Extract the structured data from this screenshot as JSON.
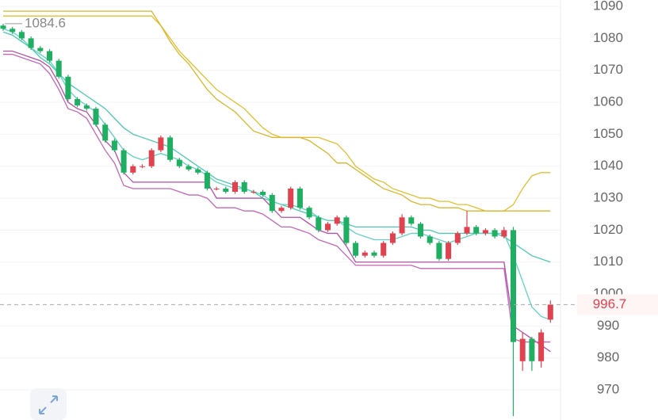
{
  "chart_data": {
    "type": "candlestick",
    "ylim": [
      960.6,
      1092
    ],
    "yticks": [
      970,
      980,
      990,
      1000,
      1010,
      1020,
      1030,
      1040,
      1050,
      1060,
      1070,
      1080,
      1090
    ],
    "grid": true,
    "up_color": "#e0424f",
    "down_color": "#1fae62",
    "open": [
      1084,
      1083,
      1082,
      1080,
      1077,
      1076,
      1073,
      1068,
      1061,
      1059,
      1058,
      1053,
      1048,
      1045,
      1038,
      1040,
      1040,
      1045,
      1049,
      1042,
      1040,
      1039,
      1038,
      1033,
      1033,
      1032,
      1035,
      1032,
      1032,
      1031,
      1026,
      1027,
      1033,
      1027,
      1024,
      1020,
      1022,
      1024,
      1016,
      1012,
      1013,
      1012,
      1016,
      1019,
      1024,
      1022,
      1018,
      1016,
      1011,
      1016,
      1019,
      1021,
      1019,
      1020,
      1018,
      1020,
      979,
      986,
      979,
      992
    ],
    "high": [
      1084.6,
      1083.6,
      1082.6,
      1080.6,
      1077.6,
      1076.6,
      1073.6,
      1068.6,
      1061.6,
      1059.6,
      1058.6,
      1053.6,
      1048.6,
      1045.6,
      1040.6,
      1040.6,
      1045.6,
      1049.6,
      1049.6,
      1042.6,
      1040.6,
      1039.6,
      1038.6,
      1033.6,
      1033.6,
      1035.6,
      1035.6,
      1032.6,
      1032.6,
      1031.6,
      1027.6,
      1033.6,
      1033.6,
      1027.6,
      1024.6,
      1022.6,
      1024.6,
      1024.6,
      1016.6,
      1013.6,
      1013.6,
      1016.6,
      1019.6,
      1025,
      1024.6,
      1022.6,
      1018.6,
      1016.6,
      1016.6,
      1019.6,
      1026,
      1021.6,
      1020.6,
      1020.6,
      1021,
      1021,
      988,
      986.6,
      989,
      998
    ],
    "low": [
      1082.4,
      1081.4,
      1079.4,
      1076.4,
      1075.4,
      1072.4,
      1067.4,
      1060.4,
      1058.4,
      1057.4,
      1052.4,
      1047.4,
      1044.4,
      1037.4,
      1037.4,
      1039.4,
      1039.4,
      1044.4,
      1041.4,
      1039.4,
      1038.4,
      1037.4,
      1032.4,
      1032.4,
      1031.4,
      1031.4,
      1031.4,
      1031.4,
      1030.4,
      1025.4,
      1025.4,
      1026.4,
      1026.4,
      1023.4,
      1019.4,
      1019.4,
      1021.4,
      1015.4,
      1011.4,
      1011.4,
      1011.4,
      1011.4,
      1015.4,
      1018.4,
      1021.4,
      1017.4,
      1015.4,
      1010.4,
      1010.4,
      1015.4,
      1018.4,
      1018.4,
      1018.4,
      1017.4,
      1017.4,
      961.8,
      976,
      976,
      977,
      991
    ],
    "close": [
      1083,
      1082,
      1080,
      1077,
      1076,
      1073,
      1068,
      1061,
      1059,
      1058,
      1053,
      1048,
      1045,
      1038,
      1040,
      1040,
      1045,
      1049,
      1042,
      1040,
      1039,
      1038,
      1033,
      1033,
      1032,
      1035,
      1032,
      1032,
      1031,
      1026,
      1027,
      1033,
      1027,
      1024,
      1020,
      1022,
      1024,
      1016,
      1012,
      1013,
      1012,
      1016,
      1019,
      1024,
      1022,
      1018,
      1016,
      1011,
      1016,
      1019,
      1021,
      1019,
      1020,
      1018,
      1020,
      985,
      986,
      979,
      988,
      996.7
    ],
    "lines": [
      {
        "color": "#e2bf2e",
        "values": [
          1087,
          1087,
          1087,
          1087,
          1087,
          1087,
          1087,
          1087,
          1087,
          1087,
          1087,
          1087,
          1087,
          1087,
          1087,
          1087,
          1087,
          1084,
          1080,
          1076,
          1073,
          1070,
          1067,
          1064,
          1062,
          1060,
          1058,
          1055,
          1052,
          1050,
          1049,
          1049,
          1049,
          1049,
          1049,
          1048,
          1047,
          1044,
          1040,
          1038,
          1036,
          1035,
          1033,
          1032,
          1031,
          1030,
          1030,
          1029,
          1029,
          1028,
          1028,
          1027,
          1026,
          1026,
          1026,
          1028,
          1033,
          1037,
          1038,
          1038
        ]
      },
      {
        "color": "#d9b62a",
        "values": [
          1088.5,
          1088.5,
          1088.5,
          1088.5,
          1088.5,
          1088.5,
          1088.5,
          1088.5,
          1088.5,
          1088.5,
          1088.5,
          1088.5,
          1088.5,
          1088.5,
          1088.5,
          1088.5,
          1088.5,
          1084,
          1079,
          1075,
          1072,
          1068,
          1064,
          1061,
          1059,
          1057,
          1054,
          1051,
          1050,
          1049,
          1049,
          1049,
          1049,
          1048,
          1046,
          1044,
          1041,
          1041,
          1039,
          1037,
          1035,
          1033,
          1032,
          1031,
          1029,
          1028,
          1028,
          1027,
          1027,
          1027,
          1026,
          1026,
          1026,
          1026,
          1026,
          1026,
          1026,
          1026,
          1026,
          1026
        ]
      },
      {
        "color": "#4cc9b0",
        "values": [
          1082,
          1081,
          1079,
          1077,
          1074,
          1072,
          1069,
          1066,
          1064,
          1062,
          1060,
          1058,
          1055,
          1052,
          1050,
          1049,
          1048,
          1047,
          1046,
          1044,
          1042,
          1040,
          1038,
          1036,
          1035,
          1034,
          1033,
          1032,
          1030,
          1029,
          1028,
          1027,
          1026,
          1025,
          1024,
          1023,
          1023,
          1022,
          1021,
          1021,
          1021,
          1021,
          1021,
          1021,
          1021,
          1020,
          1020,
          1019,
          1019,
          1019,
          1019,
          1019,
          1019,
          1019,
          1018,
          1016,
          1014,
          1012,
          1011,
          1010
        ]
      },
      {
        "color": "#5fd3bf",
        "values": [
          1083,
          1082,
          1080,
          1077,
          1075,
          1073,
          1069,
          1064,
          1061,
          1059,
          1057,
          1053,
          1049,
          1045,
          1043,
          1042,
          1043,
          1044,
          1043,
          1042,
          1040,
          1039,
          1037,
          1035,
          1034,
          1033,
          1033,
          1032,
          1031,
          1029,
          1028,
          1028,
          1027,
          1026,
          1024,
          1023,
          1023,
          1021,
          1019,
          1018,
          1017,
          1017,
          1017,
          1018,
          1019,
          1019,
          1018,
          1017,
          1016,
          1017,
          1018,
          1019,
          1019,
          1019,
          1019,
          1012,
          1004,
          996,
          993,
          992
        ]
      },
      {
        "color": "#b24fa8",
        "values": [
          1076,
          1076,
          1075,
          1074,
          1073,
          1071,
          1066,
          1060,
          1058,
          1057,
          1053,
          1048,
          1045,
          1038,
          1035,
          1035,
          1035,
          1035,
          1035,
          1035,
          1035,
          1035,
          1035,
          1030,
          1030,
          1030,
          1030,
          1030,
          1030,
          1027,
          1024,
          1024,
          1024,
          1022,
          1020,
          1019,
          1019,
          1015,
          1010,
          1010,
          1010,
          1010,
          1010,
          1010,
          1010,
          1010,
          1010,
          1010,
          1010,
          1010,
          1010,
          1010,
          1010,
          1010,
          1010,
          990,
          988,
          986,
          984,
          982
        ]
      },
      {
        "color": "#c466b8",
        "values": [
          1075,
          1075,
          1074,
          1073,
          1072,
          1069,
          1064,
          1058,
          1057,
          1055,
          1050,
          1045,
          1041,
          1034,
          1033,
          1033,
          1033,
          1033,
          1033,
          1032,
          1031,
          1031,
          1030,
          1027,
          1027,
          1027,
          1026,
          1026,
          1025,
          1023,
          1021,
          1021,
          1020,
          1019,
          1017,
          1016,
          1015,
          1012,
          1009,
          1009,
          1009,
          1009,
          1009,
          1009,
          1009,
          1008,
          1008,
          1008,
          1008,
          1008,
          1008,
          1008,
          1008,
          1008,
          1008,
          986,
          985,
          985,
          985,
          985
        ]
      }
    ],
    "last_price": 996.7,
    "high_marker": 1084.6
  }
}
